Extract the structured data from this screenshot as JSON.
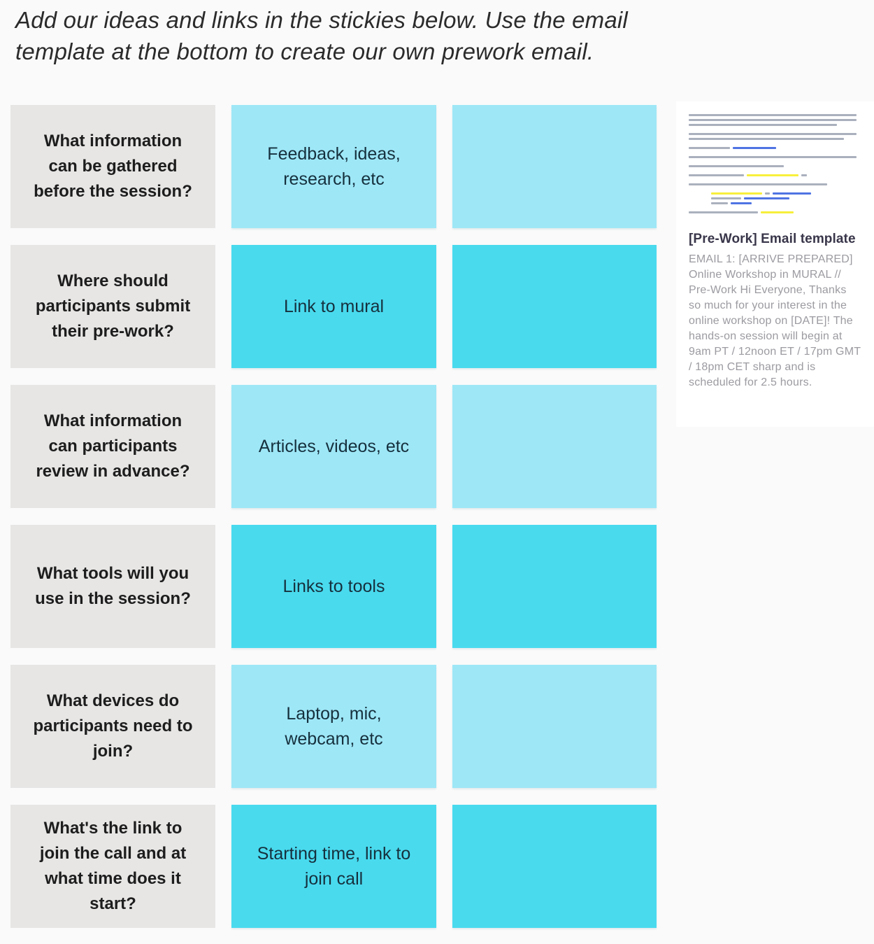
{
  "title": {
    "line1": "Add our ideas and links in the stickies below. Use the email",
    "line2": "template at the bottom to create our own prework email."
  },
  "colors": {
    "background": "#fafafa",
    "question_sticky": "#e7e6e5",
    "answer_sticky_light": "#9ee7f7",
    "answer_sticky_dark": "#49daee",
    "question_text": "#1d1d1d",
    "answer_text": "#16303d",
    "title_text": "#2b2b2b",
    "panel_title_text": "#39364a",
    "panel_body_text": "#9b9ba1"
  },
  "rows": [
    {
      "question": "What information can be gathered before the session?",
      "answer": "Feedback, ideas, research, etc",
      "tone": "light"
    },
    {
      "question": "Where should participants submit their pre-work?",
      "answer": "Link to mural",
      "tone": "dark"
    },
    {
      "question": "What information can participants review in advance?",
      "answer": "Articles, videos, etc",
      "tone": "light"
    },
    {
      "question": "What tools will you use in the session?",
      "answer": "Links to tools",
      "tone": "dark"
    },
    {
      "question": "What devices do participants need to join?",
      "answer": "Laptop, mic, webcam, etc",
      "tone": "light"
    },
    {
      "question": "What's the link to join the call and at what time does it start?",
      "answer": "Starting time, link to join call",
      "tone": "dark"
    }
  ],
  "email_panel": {
    "title": "[Pre-Work] Email template",
    "body": "EMAIL 1: [ARRIVE PREPARED] Online Workshop in MURAL // Pre-Work Hi Everyone, Thanks so much for your interest in the online workshop on [DATE]! The hands-on session will begin at 9am PT / 12noon ET / 17pm GMT / 18pm CET sharp and is scheduled for 2.5 hours.",
    "preview_colors": {
      "g": "#aab0bd",
      "b": "#4f74e3",
      "y": "#f8ef3c"
    },
    "preview_lines": [
      {
        "segs": [
          [
            "g",
            97
          ]
        ]
      },
      {
        "segs": [
          [
            "g",
            97
          ]
        ]
      },
      {
        "segs": [
          [
            "g",
            86
          ]
        ]
      },
      {
        "gap": 1
      },
      {
        "segs": [
          [
            "g",
            97
          ]
        ]
      },
      {
        "segs": [
          [
            "g",
            90
          ]
        ]
      },
      {
        "gap": 1
      },
      {
        "segs": [
          [
            "g",
            24
          ],
          [
            "b",
            25
          ]
        ]
      },
      {
        "gap": 1
      },
      {
        "segs": [
          [
            "g",
            97
          ]
        ]
      },
      {
        "gap": 1
      },
      {
        "segs": [
          [
            "g",
            55
          ]
        ]
      },
      {
        "gap": 1
      },
      {
        "segs": [
          [
            "g",
            32
          ],
          [
            "y",
            30
          ],
          [
            "g",
            3
          ]
        ]
      },
      {
        "gap": 1
      },
      {
        "segs": [
          [
            "g",
            80
          ]
        ]
      },
      {
        "gap": 1
      },
      {
        "ind": 13,
        "segs": [
          [
            "y",
            34
          ],
          [
            "g",
            3
          ],
          [
            "b",
            26
          ]
        ]
      },
      {
        "ind": 13,
        "segs": [
          [
            "g",
            20
          ],
          [
            "b",
            30
          ]
        ]
      },
      {
        "ind": 13,
        "segs": [
          [
            "g",
            11
          ],
          [
            "b",
            14
          ]
        ]
      },
      {
        "gap": 1
      },
      {
        "segs": [
          [
            "g",
            40
          ],
          [
            "y",
            19
          ]
        ]
      }
    ]
  }
}
